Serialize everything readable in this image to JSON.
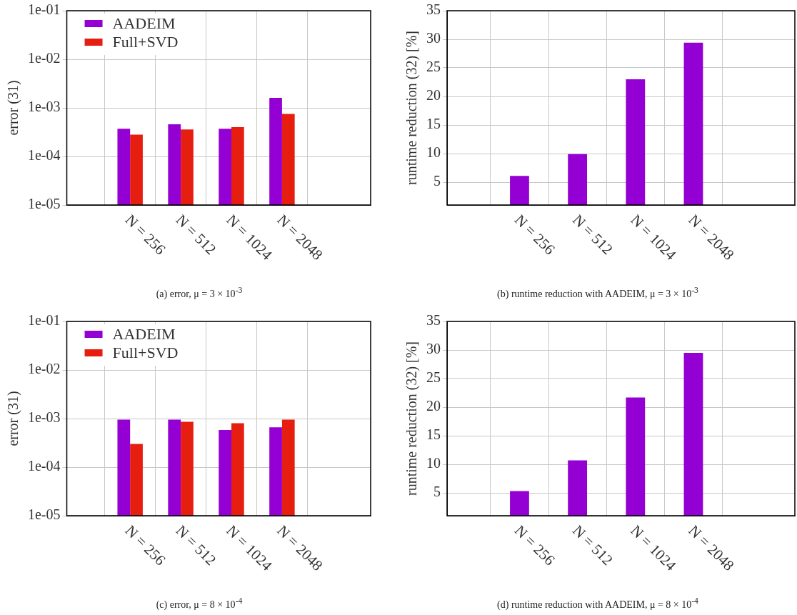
{
  "chart_data": [
    {
      "type": "bar",
      "title": "(a) error, μ = 3 × 10$^{-3}$",
      "ylabel": "error (31)",
      "categories": [
        "N = 256",
        "N = 512",
        "N = 1024",
        "N = 2048"
      ],
      "series": [
        {
          "name": "AADEIM",
          "color": "#9400d3",
          "values": [
            0.00037,
            0.00046,
            0.00037,
            0.0016
          ]
        },
        {
          "name": "Full+SVD",
          "color": "#e51e10",
          "values": [
            0.00028,
            0.00036,
            0.0004,
            0.00075
          ]
        }
      ],
      "log": "y",
      "ylim": [
        1e-05,
        0.1
      ],
      "yticks": [
        {
          "value": 1e-05,
          "label": "1e-05"
        },
        {
          "value": 0.0001,
          "label": "1e-04"
        },
        {
          "value": 0.001,
          "label": "1e-03"
        },
        {
          "value": 0.01,
          "label": "1e-02"
        },
        {
          "value": 0.1,
          "label": "1e-01"
        }
      ],
      "grid": true,
      "legend": "top left"
    },
    {
      "type": "bar",
      "title": "(b) runtime reduction with AADEIM, μ = 3 × 10$^{-3}$",
      "ylabel": "runtime reduction (32) [%]",
      "categories": [
        "N = 256",
        "N = 512",
        "N = 1024",
        "N = 2048"
      ],
      "series": [
        {
          "color": "#9400d3",
          "values": [
            6.1,
            9.9,
            23.0,
            29.4
          ]
        }
      ],
      "ylim": [
        1,
        35
      ],
      "yticks": [
        5,
        10,
        15,
        20,
        25,
        30,
        35
      ],
      "grid": true
    },
    {
      "type": "bar",
      "title": "(c) error, μ = 8 × 10$^{-4}$",
      "ylabel": "error (31)",
      "categories": [
        "N = 256",
        "N = 512",
        "N = 1024",
        "N = 2048"
      ],
      "series": [
        {
          "name": "AADEIM",
          "color": "#9400d3",
          "values": [
            0.00095,
            0.00095,
            0.00058,
            0.00066
          ]
        },
        {
          "name": "Full+SVD",
          "color": "#e51e10",
          "values": [
            0.0003,
            0.00086,
            0.0008,
            0.00095
          ]
        }
      ],
      "log": "y",
      "ylim": [
        1e-05,
        0.1
      ],
      "yticks": [
        {
          "value": 1e-05,
          "label": "1e-05"
        },
        {
          "value": 0.0001,
          "label": "1e-04"
        },
        {
          "value": 0.001,
          "label": "1e-03"
        },
        {
          "value": 0.01,
          "label": "1e-02"
        },
        {
          "value": 0.1,
          "label": "1e-01"
        }
      ],
      "grid": true,
      "legend": "top left"
    },
    {
      "type": "bar",
      "title": "(d) runtime reduction with AADEIM, μ = 8 × 10$^{-4}$",
      "ylabel": "runtime reduction (32) [%]",
      "categories": [
        "N = 256",
        "N = 512",
        "N = 1024",
        "N = 2048"
      ],
      "series": [
        {
          "color": "#9400d3",
          "values": [
            5.3,
            10.7,
            21.7,
            29.5
          ]
        }
      ],
      "ylim": [
        1,
        35
      ],
      "yticks": [
        5,
        10,
        15,
        20,
        25,
        30,
        35
      ],
      "grid": true
    }
  ]
}
